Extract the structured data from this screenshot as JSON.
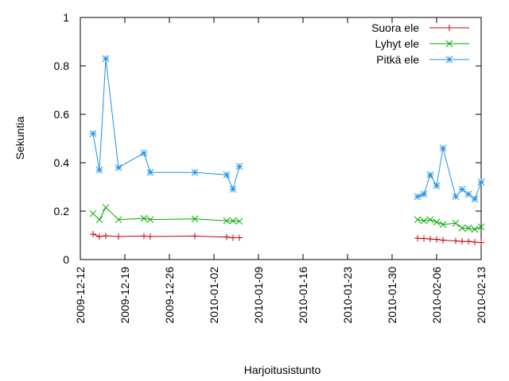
{
  "chart_data": {
    "type": "line",
    "x_label": "Harjoitusistunto",
    "y_label": "Sekuntia",
    "x": [
      "2009-12-14",
      "2009-12-15",
      "2009-12-16",
      "2009-12-18",
      "2009-12-22",
      "2009-12-23",
      "2009-12-30",
      "2010-01-04",
      "2010-01-05",
      "2010-01-06",
      "2010-01-20",
      "2010-02-03",
      "2010-02-04",
      "2010-02-05",
      "2010-02-06",
      "2010-02-07",
      "2010-02-09",
      "2010-02-10",
      "2010-02-11",
      "2010-02-12",
      "2010-02-13"
    ],
    "series": [
      {
        "name": "Suora ele",
        "color": "#cc0000",
        "marker": "plus",
        "values": [
          0.105,
          0.095,
          0.098,
          0.095,
          0.097,
          0.095,
          0.097,
          0.093,
          0.09,
          0.09,
          null,
          0.088,
          0.087,
          0.085,
          0.083,
          0.08,
          0.077,
          0.075,
          0.075,
          0.072,
          0.07
        ]
      },
      {
        "name": "Lyhyt ele",
        "color": "#00aa00",
        "marker": "cross",
        "values": [
          0.19,
          0.165,
          0.215,
          0.165,
          0.17,
          0.165,
          0.168,
          0.16,
          0.16,
          0.158,
          null,
          0.165,
          0.16,
          0.165,
          0.155,
          0.145,
          0.15,
          0.13,
          0.13,
          0.125,
          0.135
        ]
      },
      {
        "name": "Pitkä ele",
        "color": "#1e90e6",
        "marker": "star",
        "values": [
          0.52,
          0.37,
          0.83,
          0.38,
          0.44,
          0.36,
          0.36,
          0.35,
          0.29,
          0.385,
          null,
          0.26,
          0.27,
          0.35,
          0.305,
          0.46,
          0.26,
          0.29,
          0.27,
          0.25,
          0.32
        ]
      }
    ],
    "xlim": [
      "2009-12-12",
      "2010-02-13"
    ],
    "xticks": [
      "2009-12-12",
      "2009-12-19",
      "2009-12-26",
      "2010-01-02",
      "2010-01-09",
      "2010-01-16",
      "2010-01-23",
      "2010-01-30",
      "2010-02-06",
      "2010-02-13"
    ],
    "ylim": [
      0,
      1
    ],
    "yticks": [
      0,
      0.2,
      0.4,
      0.6,
      0.8,
      1
    ],
    "legend": "top-right",
    "grid": false
  }
}
